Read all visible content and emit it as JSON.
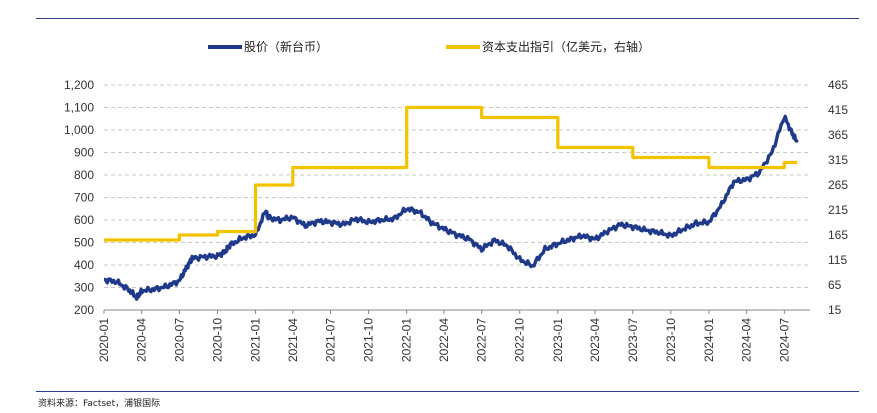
{
  "source": "资料来源：Factset，浦银国际",
  "chart_data": {
    "type": "line",
    "legend_position": "top",
    "grid": true,
    "series": [
      {
        "name": "股价（新台币）",
        "axis": "left",
        "color": "#1f3a8a",
        "points": [
          [
            "2020-01",
            335
          ],
          [
            "2020-02",
            325
          ],
          [
            "2020-03",
            290
          ],
          [
            "2020-03-20",
            255
          ],
          [
            "2020-04",
            285
          ],
          [
            "2020-05",
            292
          ],
          [
            "2020-06",
            305
          ],
          [
            "2020-07",
            330
          ],
          [
            "2020-07-20",
            395
          ],
          [
            "2020-08",
            430
          ],
          [
            "2020-09",
            437
          ],
          [
            "2020-10",
            440
          ],
          [
            "2020-10-20",
            460
          ],
          [
            "2020-11",
            490
          ],
          [
            "2020-12",
            520
          ],
          [
            "2021-01",
            535
          ],
          [
            "2021-01-25",
            640
          ],
          [
            "2021-02",
            610
          ],
          [
            "2021-03",
            600
          ],
          [
            "2021-04",
            612
          ],
          [
            "2021-05",
            575
          ],
          [
            "2021-06",
            595
          ],
          [
            "2021-07",
            590
          ],
          [
            "2021-08",
            580
          ],
          [
            "2021-09",
            605
          ],
          [
            "2021-10",
            590
          ],
          [
            "2021-11",
            600
          ],
          [
            "2021-12",
            605
          ],
          [
            "2022-01",
            650
          ],
          [
            "2022-02",
            635
          ],
          [
            "2022-03",
            590
          ],
          [
            "2022-04",
            560
          ],
          [
            "2022-05",
            535
          ],
          [
            "2022-06",
            515
          ],
          [
            "2022-07",
            470
          ],
          [
            "2022-08",
            510
          ],
          [
            "2022-09",
            485
          ],
          [
            "2022-10",
            425
          ],
          [
            "2022-11",
            395
          ],
          [
            "2022-12",
            470
          ],
          [
            "2023-01",
            495
          ],
          [
            "2023-02",
            515
          ],
          [
            "2023-03",
            530
          ],
          [
            "2023-04",
            515
          ],
          [
            "2023-05",
            550
          ],
          [
            "2023-06",
            580
          ],
          [
            "2023-07",
            570
          ],
          [
            "2023-08",
            555
          ],
          [
            "2023-09",
            545
          ],
          [
            "2023-10",
            530
          ],
          [
            "2023-11",
            560
          ],
          [
            "2023-12",
            585
          ],
          [
            "2024-01",
            590
          ],
          [
            "2024-02",
            670
          ],
          [
            "2024-03",
            770
          ],
          [
            "2024-04",
            780
          ],
          [
            "2024-05",
            810
          ],
          [
            "2024-06",
            900
          ],
          [
            "2024-07",
            1060
          ],
          [
            "2024-07-20",
            985
          ],
          [
            "2024-08",
            945
          ]
        ]
      },
      {
        "name": "资本支出指引（亿美元，右轴）",
        "axis": "right",
        "color": "#f5c200",
        "step": true,
        "points": [
          [
            "2020-01",
            155
          ],
          [
            "2020-07",
            165
          ],
          [
            "2020-10",
            172
          ],
          [
            "2021-01",
            265
          ],
          [
            "2021-04",
            300
          ],
          [
            "2022-01",
            420
          ],
          [
            "2022-07",
            400
          ],
          [
            "2023-01",
            340
          ],
          [
            "2023-07",
            320
          ],
          [
            "2024-01",
            300
          ],
          [
            "2024-07",
            310
          ],
          [
            "2024-08",
            310
          ]
        ]
      }
    ],
    "x_ticks": [
      "2020-01",
      "2020-04",
      "2020-07",
      "2020-10",
      "2021-01",
      "2021-04",
      "2021-07",
      "2021-10",
      "2022-01",
      "2022-04",
      "2022-07",
      "2022-10",
      "2023-01",
      "2023-04",
      "2023-07",
      "2023-10",
      "2024-01",
      "2024-04",
      "2024-07"
    ],
    "xlim": [
      "2020-01",
      "2024-09"
    ],
    "ylim_left": [
      200,
      1200
    ],
    "y_ticks_left": [
      "200",
      "300",
      "400",
      "500",
      "600",
      "700",
      "800",
      "900",
      "1,000",
      "1,100",
      "1,200"
    ],
    "ylim_right": [
      15,
      465
    ],
    "y_ticks_right": [
      "15",
      "65",
      "115",
      "165",
      "215",
      "265",
      "315",
      "365",
      "415",
      "465"
    ]
  }
}
